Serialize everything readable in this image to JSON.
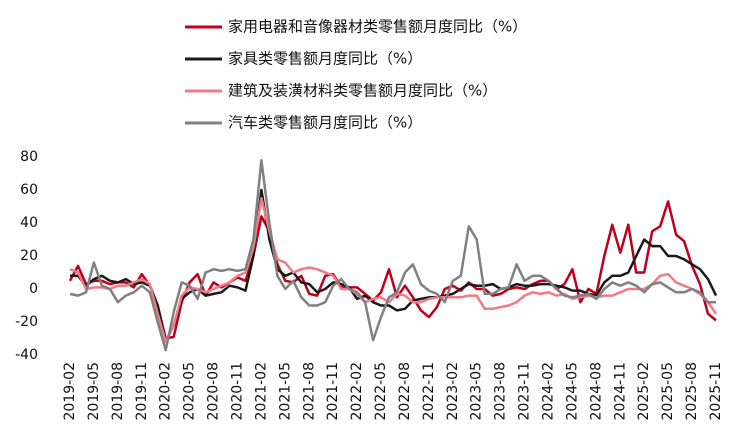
{
  "chart_data": {
    "type": "line",
    "categories": [
      "2019-02",
      null,
      null,
      "2019-05",
      null,
      null,
      "2019-08",
      null,
      null,
      "2019-11",
      null,
      null,
      "2020-02",
      null,
      null,
      "2020-05",
      null,
      null,
      "2020-08",
      null,
      null,
      "2020-11",
      null,
      null,
      "2021-02",
      null,
      null,
      "2021-05",
      null,
      null,
      "2021-08",
      null,
      null,
      "2021-11",
      null,
      null,
      "2022-02",
      null,
      null,
      "2022-05",
      null,
      null,
      "2022-08",
      null,
      null,
      "2022-11",
      null,
      null,
      "2023-02",
      null,
      null,
      "2023-05",
      null,
      null,
      "2023-08",
      null,
      null,
      "2023-11",
      null,
      null,
      "2024-02",
      null,
      null,
      "2024-05",
      null,
      null,
      "2024-08",
      null,
      null,
      "2024-11",
      null,
      null,
      "2025-02",
      null,
      null,
      "2025-05",
      null,
      null,
      "2025-08",
      null,
      null,
      "2025-11"
    ],
    "series": [
      {
        "name": "家用电器和音像器材类零售额月度同比（%）",
        "color": "#c0001a",
        "values": [
          5,
          14,
          3,
          5,
          5,
          3,
          4,
          4,
          1,
          9,
          2,
          -10,
          -30,
          -29,
          -8,
          4,
          9,
          -4,
          4,
          1,
          4,
          7,
          5,
          20,
          44,
          35,
          15,
          5,
          4,
          8,
          -3,
          -4,
          8,
          9,
          1,
          1,
          1,
          -3,
          -7,
          -2,
          12,
          -5,
          2,
          -5,
          -13,
          -17,
          -11,
          0,
          2,
          -1,
          4,
          0,
          0,
          -4,
          -3,
          0,
          1,
          0,
          3,
          5,
          5,
          0,
          3,
          12,
          -8,
          0,
          -3,
          20,
          39,
          22,
          39,
          10,
          10,
          35,
          38,
          53,
          33,
          29,
          14,
          3,
          -15,
          -19
        ]
      },
      {
        "name": "家具类零售额月度同比（%）",
        "color": "#1a1a1a",
        "values": [
          8,
          8,
          2,
          6,
          8,
          5,
          4,
          6,
          3,
          4,
          2,
          -10,
          -32,
          -22,
          -6,
          -2,
          0,
          -4,
          -3,
          -2,
          2,
          1,
          -1,
          20,
          60,
          30,
          12,
          8,
          10,
          4,
          3,
          -2,
          0,
          4,
          3,
          1,
          -6,
          -4,
          -8,
          -10,
          -10,
          -13,
          -12,
          -7,
          -6,
          -5,
          -5,
          -4,
          -3,
          0,
          3,
          2,
          2,
          3,
          0,
          1,
          3,
          2,
          2,
          3,
          3,
          2,
          1,
          -1,
          -1,
          -3,
          -4,
          4,
          8,
          8,
          10,
          20,
          30,
          26,
          26,
          20,
          20,
          18,
          15,
          12,
          6,
          -4
        ]
      },
      {
        "name": "建筑及装潢材料类零售额月度同比（%）",
        "color": "#f27a86",
        "values": [
          12,
          10,
          0,
          1,
          1,
          0,
          2,
          2,
          4,
          6,
          3,
          -15,
          -32,
          -22,
          -4,
          1,
          0,
          -2,
          0,
          2,
          4,
          8,
          10,
          25,
          55,
          35,
          18,
          16,
          10,
          12,
          13,
          12,
          10,
          8,
          0,
          0,
          -3,
          -8,
          -6,
          -5,
          -8,
          -3,
          -4,
          -8,
          -8,
          -6,
          -5,
          -5,
          -5,
          -5,
          -4,
          -4,
          -12,
          -12,
          -11,
          -10,
          -8,
          -4,
          -2,
          -3,
          -2,
          -4,
          -3,
          -6,
          -5,
          -4,
          -5,
          -4,
          -4,
          -2,
          0,
          0,
          0,
          3,
          8,
          9,
          4,
          2,
          0,
          -3,
          -8,
          -15
        ]
      },
      {
        "name": "汽车类零售额月度同比（%）",
        "color": "#808080",
        "values": [
          -3,
          -4,
          -2,
          16,
          2,
          0,
          -8,
          -4,
          -2,
          2,
          -2,
          -20,
          -37,
          -14,
          4,
          2,
          -6,
          10,
          12,
          11,
          12,
          11,
          12,
          30,
          78,
          40,
          8,
          0,
          5,
          -5,
          -10,
          -10,
          -8,
          2,
          6,
          0,
          -2,
          -8,
          -31,
          -17,
          -5,
          -2,
          10,
          15,
          3,
          -1,
          -3,
          -8,
          5,
          8,
          38,
          30,
          -3,
          -3,
          0,
          1,
          15,
          5,
          8,
          8,
          5,
          0,
          -4,
          -5,
          -4,
          -3,
          -6,
          0,
          4,
          2,
          4,
          2,
          -2,
          3,
          4,
          1,
          -2,
          -2,
          0,
          -2,
          -8,
          -8
        ]
      }
    ],
    "ylim": [
      -40,
      80
    ],
    "yticks": [
      -40,
      -20,
      0,
      20,
      40,
      60,
      80
    ]
  }
}
